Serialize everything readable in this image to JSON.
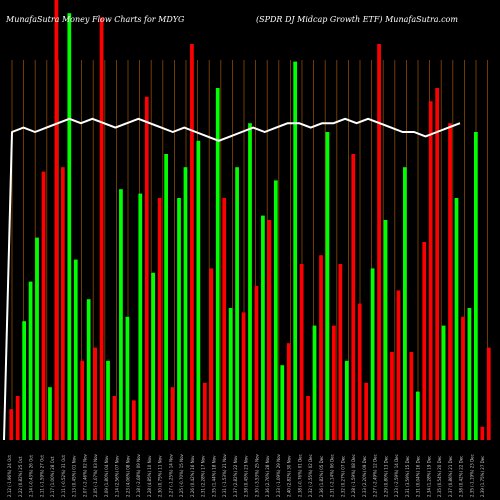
{
  "chart_data": {
    "type": "bar",
    "title_left": "MunafaSutra  Money Flow  Charts for MDYG",
    "title_right": "(SPDR DJ Midcap Growth ETF) MunafaSutra.com",
    "categories": [
      "Mon 24 Oct 2022",
      "Tue 25 Oct 2022",
      "Wed 26 Oct 2022",
      "Thu 27 Oct 2022",
      "Fri 28 Oct 2022",
      "Mon 31 Oct 2022",
      "Tue 01 Nov 2022",
      "Wed 02 Nov 2022",
      "Thu 03 Nov 2022",
      "Fri 04 Nov 2022",
      "Mon 07 Nov 2022",
      "Tue 08 Nov 2022",
      "Wed 09 Nov 2022",
      "Thu 10 Nov 2022",
      "Fri 11 Nov 2022",
      "Mon 14 Nov 2022",
      "Tue 15 Nov 2022",
      "Wed 16 Nov 2022",
      "Thu 17 Nov 2022",
      "Fri 18 Nov 2022",
      "Mon 21 Nov 2022",
      "Tue 22 Nov 2022",
      "Wed 23 Nov 2022",
      "Fri 25 Nov 2022",
      "Mon 28 Nov 2022",
      "Tue 29 Nov 2022",
      "Wed 30 Nov 2022",
      "Thu 01 Dec 2022",
      "Fri 02 Dec 2022",
      "Mon 05 Dec 2022",
      "Tue 06 Dec 2022",
      "Wed 07 Dec 2022",
      "Thu 08 Dec 2022",
      "Fri 09 Dec 2022",
      "Mon 12 Dec 2022",
      "Tue 13 Dec 2022",
      "Wed 14 Dec 2022",
      "Thu 15 Dec 2022",
      "Fri 16 Dec 2022",
      "Mon 19 Dec 2022",
      "Tue 20 Dec 2022",
      "Wed 21 Dec 2022",
      "Thu 22 Dec 2022",
      "Fri 23 Dec 2022",
      "Tue 27 Dec 2022",
      "Wed 28 Dec 2022",
      "Thu 29 Dec 2022",
      "Fri 30 Dec 2022",
      "Tue 03 Jan 2023",
      "Wed 04 Jan 2023",
      "Thu 05 Jan 2023",
      "Fri 06 Jan 2023",
      "Mon 09 Jan 2023",
      "Tue 10 Jan 2023",
      "Wed 11 Jan 2023",
      "Thu 12 Jan 2023",
      "Fri 13 Jan 2023",
      "Tue 17 Jan 2023",
      "Wed 18 Jan 2023",
      "Thu 19 Jan 2023",
      "Fri 20 Jan 2023",
      "Mon 23 Jan 2023",
      "Tue 24 Jan 2023",
      "Wed 25 Jan 2023",
      "Thu 26 Jan 2023",
      "Fri 27 Jan 2023",
      "Mon 30 Jan 2023",
      "Tue 31 Jan 2023",
      "Wed 01 Feb 2023",
      "Thu 02 Feb 2023",
      "Fri 03 Feb 2023",
      "Mon 06 Feb 2023",
      "Tue 07 Feb 2023",
      "Wed 08 Feb 2023",
      "Thu 09 Feb 2023"
    ],
    "tick_labels": [
      "2.12 (-1.96%) 24 Oct",
      "2.22 (0.82%) 25 Oct",
      "2.14 (-0.43%) 26 Oct",
      "2.11 (-1.59%) 27 Oct",
      "2.17 (1.00%) 28 Oct",
      "2.11 (-0.52%) 31 Oct",
      "2.13 (0.45%) 01 Nov",
      "2.07 (-2.46%) 02 Nov",
      "2.05 (-1.07%) 03 Nov",
      "2.09 (1.80%) 04 Nov",
      "2.14 (2.56%) 07 Nov",
      "2.23 (4.06%) 08 Nov",
      "2.18 (-2.08%) 09 Nov",
      "2.28 (4.85%) 10 Nov",
      "2.30 (0.75%) 11 Nov",
      "2.27 (-1.25%) 14 Nov",
      "2.25 (-0.70%) 15 Nov",
      "2.26 (0.42%) 16 Nov",
      "2.31 (2.28%) 17 Nov",
      "2.35 (1.44%) 18 Nov",
      "2.31 (-1.53%) 21 Nov",
      "2.37 (2.82%) 22 Nov",
      "2.38 (0.45%) 23 Nov",
      "2.30 (-3.53%) 25 Nov",
      "2.36 (2.76%) 28 Nov",
      "2.33 (-1.09%) 29 Nov",
      "2.40 (2.82%) 30 Nov",
      "2.38 (-0.76%) 01 Dec",
      "2.32 (-2.55%) 02 Dec",
      "2.36 (1.82%) 05 Dec",
      "2.31 (-2.14%) 06 Dec",
      "2.32 (0.27%) 07 Dec",
      "2.28 (-1.59%) 08 Dec",
      "2.33 (2.20%) 09 Dec",
      "2.27 (-2.49%) 12 Dec",
      "2.29 (0.80%) 13 Dec",
      "2.23 (-2.59%) 14 Dec",
      "2.31 (3.59%) 15 Dec",
      "2.31 (0.04%) 16 Dec",
      "2.34 (1.28%) 19 Dec",
      "2.35 (0.54%) 20 Dec",
      "2.37 (0.86%) 21 Dec",
      "2.38 (0.42%) 22 Dec",
      "2.35 (-1.19%) 23 Dec",
      "2.39 (1.75%) 27 Dec"
    ],
    "series": [
      {
        "values": [
          7,
          10,
          27,
          36,
          46,
          61,
          12,
          100,
          62,
          97,
          41,
          18,
          32,
          21,
          96,
          18,
          10,
          57,
          28,
          9,
          56,
          78,
          38,
          55,
          65,
          12,
          55,
          62,
          90,
          68,
          13,
          39,
          80,
          55,
          30,
          62,
          29,
          72,
          35,
          51,
          50,
          59,
          17,
          22,
          86,
          40,
          10,
          26,
          42,
          70,
          26,
          40,
          18,
          65,
          31,
          13,
          39,
          90,
          50,
          20,
          34,
          62,
          20,
          11,
          45,
          77,
          80,
          26,
          72,
          55,
          28,
          30,
          70,
          3,
          21
        ],
        "colors": [
          "r",
          "r",
          "g",
          "g",
          "g",
          "r",
          "g",
          "r",
          "r",
          "g",
          "g",
          "r",
          "g",
          "r",
          "r",
          "g",
          "r",
          "g",
          "g",
          "r",
          "g",
          "r",
          "g",
          "r",
          "g",
          "r",
          "g",
          "g",
          "r",
          "g",
          "r",
          "r",
          "g",
          "r",
          "g",
          "g",
          "r",
          "g",
          "r",
          "g",
          "r",
          "g",
          "g",
          "r",
          "g",
          "r",
          "r",
          "g",
          "r",
          "g",
          "r",
          "r",
          "g",
          "r",
          "r",
          "r",
          "g",
          "r",
          "g",
          "r",
          "r",
          "g",
          "r",
          "g",
          "r",
          "r",
          "r",
          "g",
          "r",
          "g",
          "r",
          "g",
          "g",
          "r",
          "r"
        ]
      }
    ],
    "line_values": [
      70,
      71,
      70,
      71,
      72,
      73,
      72,
      73,
      72,
      71,
      72,
      73,
      72,
      71,
      70,
      71,
      70,
      69,
      68,
      69,
      70,
      71,
      70,
      71,
      72,
      72,
      71,
      72,
      72,
      73,
      72,
      73,
      72,
      71,
      70,
      70,
      69,
      70,
      71,
      72
    ],
    "ylim": [
      0,
      100
    ],
    "grid": true,
    "colors": {
      "background": "#000000",
      "up": "#00ff00",
      "down": "#ff0000",
      "grid": "#8b4a00",
      "line": "#ffffff",
      "text": "#ffffff"
    }
  }
}
